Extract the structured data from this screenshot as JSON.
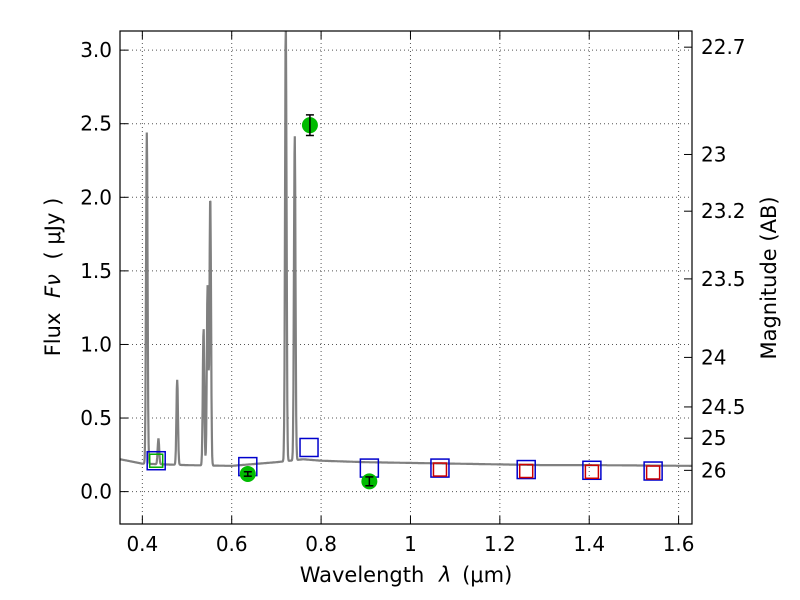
{
  "chart_data": {
    "type": "line",
    "xlabel": "Wavelength",
    "xlabel_symbol": "λ",
    "xlabel_unit": "(μm)",
    "ylabel": "Flux",
    "ylabel_symbol": "Fν",
    "ylabel_unit": "( μJy )",
    "ylabel_right": "Magnitude (AB)",
    "xlim": [
      0.35,
      1.63
    ],
    "ylim": [
      -0.22,
      3.13
    ],
    "grid": true,
    "x_ticks": [
      {
        "value": 0.4,
        "label": "0.4"
      },
      {
        "value": 0.6,
        "label": "0.6"
      },
      {
        "value": 0.8,
        "label": "0.8"
      },
      {
        "value": 1.0,
        "label": "1"
      },
      {
        "value": 1.2,
        "label": "1.2"
      },
      {
        "value": 1.4,
        "label": "1.4"
      },
      {
        "value": 1.6,
        "label": "1.6"
      }
    ],
    "y_ticks": [
      {
        "value": 0.0,
        "label": "0.0"
      },
      {
        "value": 0.5,
        "label": "0.5"
      },
      {
        "value": 1.0,
        "label": "1.0"
      },
      {
        "value": 1.5,
        "label": "1.5"
      },
      {
        "value": 2.0,
        "label": "2.0"
      },
      {
        "value": 2.5,
        "label": "2.5"
      },
      {
        "value": 3.0,
        "label": "3.0"
      }
    ],
    "right_ticks": [
      {
        "value": 22.7,
        "label": "22.7"
      },
      {
        "value": 23.0,
        "label": "23"
      },
      {
        "value": 23.2,
        "label": "23.2"
      },
      {
        "value": 23.5,
        "label": "23.5"
      },
      {
        "value": 24.0,
        "label": "24"
      },
      {
        "value": 24.5,
        "label": "24.5"
      },
      {
        "value": 25.0,
        "label": "25"
      },
      {
        "value": 26.0,
        "label": "26"
      }
    ],
    "colors": {
      "spectrum": "#808080",
      "model_blue": "#0000cc",
      "model_red": "#cc0000",
      "model_green": "#00aa00",
      "observed": "#00bb00",
      "errorbar": "#000000",
      "grid": "#555555"
    },
    "spectrum": {
      "continuum": [
        [
          0.35,
          0.22
        ],
        [
          0.4,
          0.19
        ],
        [
          0.5,
          0.18
        ],
        [
          0.6,
          0.175
        ],
        [
          0.7,
          0.2
        ],
        [
          0.76,
          0.22
        ],
        [
          0.8,
          0.21
        ],
        [
          0.9,
          0.2
        ],
        [
          1.0,
          0.195
        ],
        [
          1.1,
          0.19
        ],
        [
          1.2,
          0.185
        ],
        [
          1.3,
          0.18
        ],
        [
          1.4,
          0.18
        ],
        [
          1.5,
          0.178
        ],
        [
          1.63,
          0.175
        ]
      ],
      "lines": [
        {
          "x": 0.41,
          "peak": 2.44
        },
        {
          "x": 0.436,
          "peak": 0.36
        },
        {
          "x": 0.478,
          "peak": 0.76
        },
        {
          "x": 0.537,
          "peak": 1.11
        },
        {
          "x": 0.546,
          "peak": 1.4
        },
        {
          "x": 0.552,
          "peak": 2.02
        },
        {
          "x": 0.721,
          "peak": 3.2
        },
        {
          "x": 0.741,
          "peak": 2.43
        }
      ]
    },
    "model_photometry": [
      {
        "x": 0.431,
        "y": 0.21,
        "style": "blue"
      },
      {
        "x": 0.431,
        "y": 0.21,
        "style": "green"
      },
      {
        "x": 0.636,
        "y": 0.17,
        "style": "blue"
      },
      {
        "x": 0.773,
        "y": 0.3,
        "style": "blue"
      },
      {
        "x": 0.908,
        "y": 0.16,
        "style": "blue"
      },
      {
        "x": 1.066,
        "y": 0.16,
        "style": "blue"
      },
      {
        "x": 1.066,
        "y": 0.15,
        "style": "red"
      },
      {
        "x": 1.259,
        "y": 0.15,
        "style": "blue"
      },
      {
        "x": 1.259,
        "y": 0.14,
        "style": "red"
      },
      {
        "x": 1.406,
        "y": 0.145,
        "style": "blue"
      },
      {
        "x": 1.406,
        "y": 0.135,
        "style": "red"
      },
      {
        "x": 1.543,
        "y": 0.14,
        "style": "blue"
      },
      {
        "x": 1.543,
        "y": 0.13,
        "style": "red"
      }
    ],
    "observed_photometry": [
      {
        "x": 0.636,
        "y": 0.12,
        "err": 0.015
      },
      {
        "x": 0.775,
        "y": 2.49,
        "err": 0.07
      },
      {
        "x": 0.908,
        "y": 0.07,
        "err": 0.03
      }
    ]
  }
}
